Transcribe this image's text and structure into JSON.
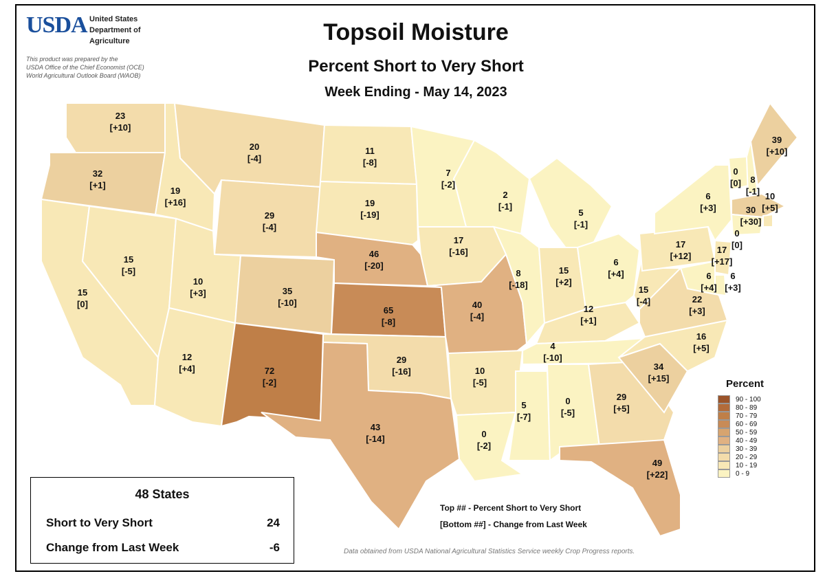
{
  "header": {
    "logo": "USDA",
    "agency_lines": [
      "United States",
      "Department of",
      "Agriculture"
    ],
    "prepared_lines": [
      "This product was prepared by the",
      "USDA Office of the Chief Economist (OCE)",
      "World Agricultural Outlook Board (WAOB)"
    ],
    "title": "Topsoil Moisture",
    "subtitle": "Percent Short to Very Short",
    "week": "Week Ending - May 14, 2023"
  },
  "colors": {
    "0-9": "#fbf3c2",
    "10-19": "#f8e8b6",
    "20-29": "#f3dcab",
    "30-39": "#ecd09f",
    "40-49": "#e0b182",
    "50-59": "#d7a46f",
    "60-69": "#c88b57",
    "70-79": "#bf7f48",
    "80-89": "#b26b3a",
    "90-100": "#9b542a"
  },
  "legend": {
    "title": "Percent",
    "items": [
      "90 - 100",
      "80 - 89",
      "70 - 79",
      "60 - 69",
      "50 - 59",
      "40 - 49",
      "30 - 39",
      "20 - 29",
      "10 - 19",
      "0 - 9"
    ],
    "colors": [
      "#9b542a",
      "#b26b3a",
      "#bf7f48",
      "#c88b57",
      "#d7a46f",
      "#e0b182",
      "#ecd09f",
      "#f3dcab",
      "#f8e8b6",
      "#fbf3c2"
    ]
  },
  "states": [
    {
      "id": "WA",
      "value": "23",
      "change": "[+10]"
    },
    {
      "id": "OR",
      "value": "32",
      "change": "[+1]"
    },
    {
      "id": "CA",
      "value": "15",
      "change": "[0]"
    },
    {
      "id": "NV",
      "value": "15",
      "change": "[-5]"
    },
    {
      "id": "ID",
      "value": "19",
      "change": "[+16]"
    },
    {
      "id": "MT",
      "value": "20",
      "change": "[-4]"
    },
    {
      "id": "WY",
      "value": "29",
      "change": "[-4]"
    },
    {
      "id": "UT",
      "value": "10",
      "change": "[+3]"
    },
    {
      "id": "AZ",
      "value": "12",
      "change": "[+4]"
    },
    {
      "id": "CO",
      "value": "35",
      "change": "[-10]"
    },
    {
      "id": "NM",
      "value": "72",
      "change": "[-2]"
    },
    {
      "id": "ND",
      "value": "11",
      "change": "[-8]"
    },
    {
      "id": "SD",
      "value": "19",
      "change": "[-19]"
    },
    {
      "id": "NE",
      "value": "46",
      "change": "[-20]"
    },
    {
      "id": "KS",
      "value": "65",
      "change": "[-8]"
    },
    {
      "id": "OK",
      "value": "29",
      "change": "[-16]"
    },
    {
      "id": "TX",
      "value": "43",
      "change": "[-14]"
    },
    {
      "id": "MN",
      "value": "7",
      "change": "[-2]"
    },
    {
      "id": "IA",
      "value": "17",
      "change": "[-16]"
    },
    {
      "id": "MO",
      "value": "40",
      "change": "[-4]"
    },
    {
      "id": "AR",
      "value": "10",
      "change": "[-5]"
    },
    {
      "id": "LA",
      "value": "0",
      "change": "[-2]"
    },
    {
      "id": "WI",
      "value": "2",
      "change": "[-1]"
    },
    {
      "id": "IL",
      "value": "8",
      "change": "[-18]"
    },
    {
      "id": "MS",
      "value": "5",
      "change": "[-7]"
    },
    {
      "id": "MI",
      "value": "5",
      "change": "[-1]"
    },
    {
      "id": "IN",
      "value": "15",
      "change": "[+2]"
    },
    {
      "id": "KY",
      "value": "12",
      "change": "[+1]"
    },
    {
      "id": "TN",
      "value": "4",
      "change": "[-10]"
    },
    {
      "id": "AL",
      "value": "0",
      "change": "[-5]"
    },
    {
      "id": "OH",
      "value": "6",
      "change": "[+4]"
    },
    {
      "id": "GA",
      "value": "29",
      "change": "[+5]"
    },
    {
      "id": "FL",
      "value": "49",
      "change": "[+22]"
    },
    {
      "id": "SC",
      "value": "34",
      "change": "[+15]"
    },
    {
      "id": "NC",
      "value": "16",
      "change": "[+5]"
    },
    {
      "id": "VA",
      "value": "22",
      "change": "[+3]"
    },
    {
      "id": "WV",
      "value": "15",
      "change": "[-4]"
    },
    {
      "id": "PA",
      "value": "17",
      "change": "[+12]"
    },
    {
      "id": "NY",
      "value": "6",
      "change": "[+3]"
    },
    {
      "id": "VT",
      "value": "0",
      "change": "[0]"
    },
    {
      "id": "NH",
      "value": "8",
      "change": "[-1]"
    },
    {
      "id": "ME",
      "value": "39",
      "change": "[+10]"
    },
    {
      "id": "MA",
      "value": "30",
      "change": "[+30]"
    },
    {
      "id": "RI",
      "value": "10",
      "change": "[+5]"
    },
    {
      "id": "CT",
      "value": "0",
      "change": "[0]"
    },
    {
      "id": "NJ",
      "value": "17",
      "change": "[+17]"
    },
    {
      "id": "DE",
      "value": "6",
      "change": "[+3]"
    },
    {
      "id": "MD",
      "value": "6",
      "change": "[+4]"
    }
  ],
  "summary": {
    "title": "48 States",
    "rows": [
      {
        "label": "Short to Very Short",
        "value": "24"
      },
      {
        "label": "Change from Last Week",
        "value": "-6"
      }
    ]
  },
  "notes": [
    "Top ## - Percent Short to Very Short",
    "[Bottom ##] - Change from Last Week"
  ],
  "source": "Data obtained from USDA National Agricultural Statistics Service weekly Crop Progress reports."
}
